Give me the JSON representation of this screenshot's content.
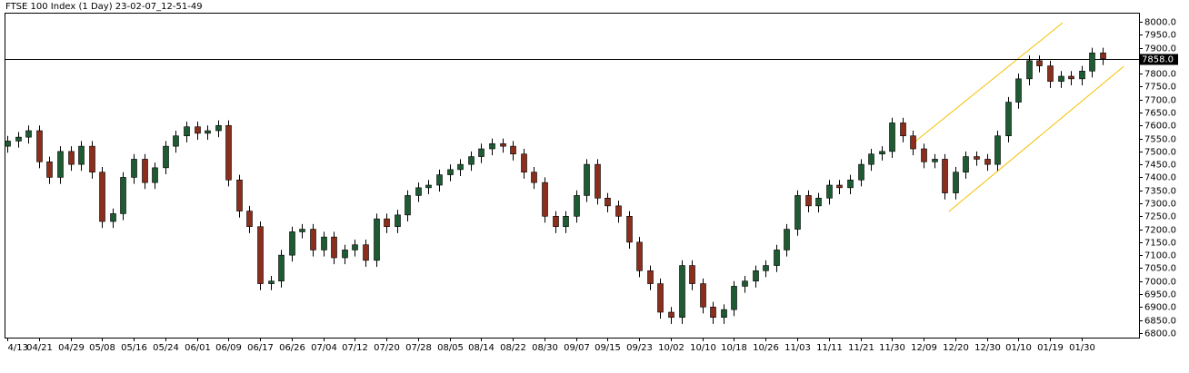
{
  "chart_data": {
    "type": "candlestick",
    "title": "FTSE 100 Index (1 Day) 23-02-07_12-51-49",
    "categories": [
      "4/13",
      null,
      null,
      "04/21",
      null,
      null,
      "04/29",
      null,
      null,
      "05/08",
      null,
      null,
      "05/16",
      null,
      null,
      "05/24",
      null,
      null,
      "06/01",
      null,
      null,
      "06/09",
      null,
      null,
      "06/17",
      null,
      null,
      "06/26",
      null,
      null,
      "07/04",
      null,
      null,
      "07/12",
      null,
      null,
      "07/20",
      null,
      null,
      "07/28",
      null,
      null,
      "08/05",
      null,
      null,
      "08/14",
      null,
      null,
      "08/22",
      null,
      null,
      "08/30",
      null,
      null,
      "09/07",
      null,
      null,
      "09/15",
      null,
      null,
      "09/23",
      null,
      null,
      "10/02",
      null,
      null,
      "10/10",
      null,
      null,
      "10/18",
      null,
      null,
      "10/26",
      null,
      null,
      "11/03",
      null,
      null,
      "11/11",
      null,
      null,
      "11/21",
      null,
      null,
      "11/30",
      null,
      null,
      "12/09",
      null,
      null,
      "12/20",
      null,
      null,
      "12/30",
      null,
      null,
      "01/10",
      null,
      null,
      "01/19",
      null,
      null,
      "01/30",
      null,
      null
    ],
    "open": [
      7520,
      7540,
      7555,
      7580,
      7460,
      7400,
      7500,
      7450,
      7520,
      7420,
      7230,
      7260,
      7400,
      7470,
      7380,
      7437,
      7520,
      7560,
      7595,
      7570,
      7580,
      7600,
      7390,
      7270,
      7210,
      6990,
      7000,
      7100,
      7190,
      7200,
      7120,
      7170,
      7090,
      7120,
      7140,
      7080,
      7240,
      7210,
      7255,
      7330,
      7360,
      7370,
      7410,
      7430,
      7450,
      7480,
      7510,
      7530,
      7520,
      7490,
      7420,
      7380,
      7250,
      7210,
      7250,
      7330,
      7450,
      7320,
      7290,
      7250,
      7150,
      7040,
      6990,
      6880,
      6860,
      7060,
      6990,
      6900,
      6860,
      6890,
      6980,
      7000,
      7040,
      7060,
      7120,
      7200,
      7330,
      7290,
      7320,
      7370,
      7360,
      7390,
      7450,
      7490,
      7500,
      7610,
      7560,
      7510,
      7460,
      7470,
      7340,
      7420,
      7480,
      7470,
      7450,
      7560,
      7690,
      7780,
      7850,
      7830,
      7770,
      7790,
      7780,
      7810,
      7880
    ],
    "high": [
      7560,
      7575,
      7600,
      7600,
      7480,
      7520,
      7520,
      7540,
      7540,
      7440,
      7280,
      7420,
      7490,
      7490,
      7457,
      7540,
      7580,
      7615,
      7615,
      7600,
      7620,
      7620,
      7410,
      7290,
      7230,
      7020,
      7120,
      7210,
      7220,
      7220,
      7190,
      7190,
      7140,
      7160,
      7160,
      7260,
      7260,
      7275,
      7350,
      7380,
      7390,
      7430,
      7450,
      7470,
      7500,
      7530,
      7550,
      7550,
      7540,
      7510,
      7440,
      7400,
      7270,
      7270,
      7350,
      7470,
      7470,
      7340,
      7310,
      7270,
      7170,
      7060,
      7010,
      6900,
      7080,
      7080,
      7010,
      6920,
      6910,
      7000,
      7020,
      7060,
      7080,
      7140,
      7220,
      7350,
      7350,
      7340,
      7390,
      7390,
      7410,
      7470,
      7510,
      7520,
      7630,
      7630,
      7580,
      7530,
      7490,
      7490,
      7440,
      7500,
      7500,
      7490,
      7580,
      7710,
      7800,
      7870,
      7870,
      7850,
      7810,
      7810,
      7830,
      7900,
      7900
    ],
    "low": [
      7495,
      7515,
      7530,
      7435,
      7375,
      7375,
      7425,
      7425,
      7395,
      7205,
      7205,
      7235,
      7375,
      7355,
      7355,
      7412,
      7495,
      7535,
      7545,
      7545,
      7555,
      7365,
      7245,
      7185,
      6965,
      6965,
      6975,
      7075,
      7165,
      7095,
      7095,
      7065,
      7065,
      7095,
      7055,
      7055,
      7185,
      7185,
      7230,
      7305,
      7335,
      7345,
      7385,
      7405,
      7425,
      7455,
      7485,
      7495,
      7465,
      7395,
      7355,
      7225,
      7185,
      7185,
      7225,
      7305,
      7295,
      7265,
      7225,
      7125,
      7015,
      6965,
      6855,
      6835,
      6835,
      6965,
      6875,
      6835,
      6835,
      6865,
      6955,
      6975,
      7015,
      7035,
      7095,
      7175,
      7265,
      7265,
      7295,
      7335,
      7335,
      7365,
      7425,
      7465,
      7475,
      7535,
      7485,
      7435,
      7435,
      7315,
      7315,
      7395,
      7445,
      7425,
      7425,
      7535,
      7665,
      7755,
      7805,
      7745,
      7745,
      7755,
      7755,
      7785,
      7833
    ],
    "close": [
      7540,
      7555,
      7580,
      7460,
      7400,
      7500,
      7450,
      7520,
      7420,
      7230,
      7260,
      7400,
      7470,
      7380,
      7437,
      7520,
      7560,
      7595,
      7570,
      7580,
      7600,
      7390,
      7270,
      7210,
      6990,
      7000,
      7100,
      7190,
      7200,
      7120,
      7170,
      7090,
      7120,
      7140,
      7080,
      7240,
      7210,
      7255,
      7330,
      7360,
      7370,
      7410,
      7430,
      7450,
      7480,
      7510,
      7530,
      7520,
      7490,
      7420,
      7380,
      7250,
      7210,
      7250,
      7330,
      7450,
      7320,
      7290,
      7250,
      7150,
      7040,
      6990,
      6880,
      6860,
      7060,
      6990,
      6900,
      6860,
      6890,
      6980,
      7000,
      7040,
      7060,
      7120,
      7200,
      7330,
      7290,
      7320,
      7370,
      7360,
      7390,
      7450,
      7490,
      7500,
      7610,
      7560,
      7510,
      7460,
      7470,
      7340,
      7420,
      7480,
      7470,
      7450,
      7560,
      7690,
      7780,
      7850,
      7830,
      7770,
      7790,
      7780,
      7810,
      7880,
      7858
    ],
    "up_color": "#1e5a32",
    "down_color": "#8b2e1c",
    "ylim": [
      6782,
      8035
    ],
    "yticks": [
      {
        "value": 6800,
        "label": "6800.0"
      },
      {
        "value": 6850,
        "label": "6850.0"
      },
      {
        "value": 6900,
        "label": "6900.0"
      },
      {
        "value": 6950,
        "label": "6950.0"
      },
      {
        "value": 7000,
        "label": "7000.0"
      },
      {
        "value": 7050,
        "label": "7050.0"
      },
      {
        "value": 7100,
        "label": "7100.0"
      },
      {
        "value": 7150,
        "label": "7150.0"
      },
      {
        "value": 7200,
        "label": "7200.0"
      },
      {
        "value": 7250,
        "label": "7250.0"
      },
      {
        "value": 7300,
        "label": "7300.0"
      },
      {
        "value": 7350,
        "label": "7350.0"
      },
      {
        "value": 7400,
        "label": "7400.0"
      },
      {
        "value": 7450,
        "label": "7450.0"
      },
      {
        "value": 7500,
        "label": "7500.0"
      },
      {
        "value": 7550,
        "label": "7550.0"
      },
      {
        "value": 7600,
        "label": "7600.0"
      },
      {
        "value": 7650,
        "label": "7650.0"
      },
      {
        "value": 7700,
        "label": "7700.0"
      },
      {
        "value": 7750,
        "label": "7750.0"
      },
      {
        "value": 7800,
        "label": "7800.0"
      },
      {
        "value": 7850,
        "label": "7850.0"
      },
      {
        "value": 7900,
        "label": "7900.0"
      },
      {
        "value": 7950,
        "label": "7950.0"
      },
      {
        "value": 8000,
        "label": "8000.0"
      }
    ],
    "price_line": {
      "value": 7858,
      "label": "7858.0"
    },
    "trend_lines": [
      {
        "color": "#f5c000",
        "start": [
          86.1,
          7535
        ],
        "end": [
          100.2,
          7996
        ]
      },
      {
        "color": "#f5c000",
        "start": [
          89.4,
          7268
        ],
        "end": [
          106,
          7828
        ]
      }
    ]
  }
}
